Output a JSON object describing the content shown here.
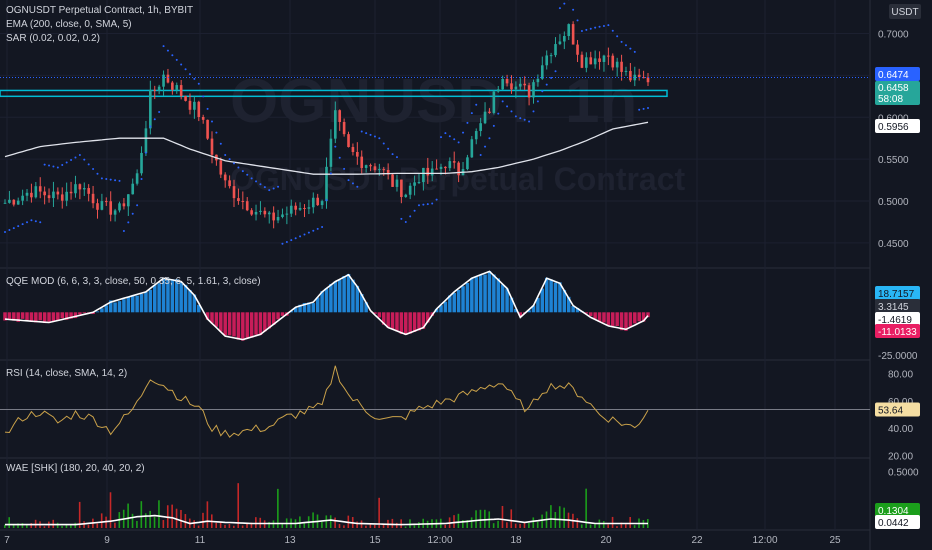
{
  "header": {
    "title": "OGNUSDT Perpetual Contract, 1h, BYBIT",
    "ind1": "EMA (200, close, 0, SMA, 5)",
    "ind2": "SAR (0.02, 0.02, 0.2)",
    "currency": "USDT",
    "watermark_big": "OGNUSDT",
    "watermark_big_suffix": "1h",
    "watermark_small": "OGNUSDT Perpetual Contract"
  },
  "colors": {
    "background": "#131722",
    "up": "#26a69a",
    "down": "#ef5350",
    "sar": "#2962ff",
    "ema": "#e0e3eb",
    "level": "#00bcd4",
    "qqe_up": "#2196f3",
    "qqe_down": "#e91e63",
    "rsi": "#c9a14a",
    "wae_up": "#1b9e1b",
    "wae_down": "#c62828"
  },
  "chart_data": [
    {
      "type": "candlestick",
      "panel": "price",
      "title": "OGNUSDT Perpetual Contract, 1h, BYBIT",
      "y_ticks": [
        "0.7000",
        "0.6500",
        "0.6000",
        "0.5500",
        "0.5000",
        "0.4500"
      ],
      "ylim": [
        0.42,
        0.74
      ],
      "x_ticks": [
        "7",
        "9",
        "11",
        "13",
        "15",
        "12:00",
        "18",
        "20",
        "22",
        "12:00",
        "25"
      ],
      "close_path": [
        [
          0,
          0.498
        ],
        [
          6,
          0.512
        ],
        [
          12,
          0.505
        ],
        [
          17,
          0.52
        ],
        [
          22,
          0.492
        ],
        [
          26,
          0.489
        ],
        [
          30,
          0.53
        ],
        [
          33,
          0.624
        ],
        [
          36,
          0.65
        ],
        [
          40,
          0.628
        ],
        [
          44,
          0.605
        ],
        [
          47,
          0.56
        ],
        [
          50,
          0.52
        ],
        [
          53,
          0.505
        ],
        [
          56,
          0.492
        ],
        [
          60,
          0.478
        ],
        [
          64,
          0.486
        ],
        [
          68,
          0.495
        ],
        [
          72,
          0.504
        ],
        [
          75,
          0.6
        ],
        [
          78,
          0.56
        ],
        [
          81,
          0.548
        ],
        [
          85,
          0.54
        ],
        [
          88,
          0.521
        ],
        [
          91,
          0.51
        ],
        [
          94,
          0.53
        ],
        [
          97,
          0.532
        ],
        [
          100,
          0.546
        ],
        [
          103,
          0.535
        ],
        [
          106,
          0.57
        ],
        [
          110,
          0.61
        ],
        [
          113,
          0.654
        ],
        [
          116,
          0.636
        ],
        [
          119,
          0.63
        ],
        [
          122,
          0.666
        ],
        [
          125,
          0.69
        ],
        [
          128,
          0.706
        ],
        [
          131,
          0.668
        ],
        [
          134,
          0.672
        ],
        [
          137,
          0.675
        ],
        [
          140,
          0.655
        ],
        [
          143,
          0.643
        ],
        [
          146,
          0.646
        ]
      ],
      "ema_path": [
        [
          0,
          0.553
        ],
        [
          8,
          0.565
        ],
        [
          16,
          0.57
        ],
        [
          26,
          0.575
        ],
        [
          36,
          0.575
        ],
        [
          42,
          0.562
        ],
        [
          50,
          0.548
        ],
        [
          60,
          0.54
        ],
        [
          70,
          0.532
        ],
        [
          80,
          0.532
        ],
        [
          90,
          0.533
        ],
        [
          100,
          0.533
        ],
        [
          106,
          0.535
        ],
        [
          112,
          0.54
        ],
        [
          120,
          0.55
        ],
        [
          126,
          0.56
        ],
        [
          132,
          0.572
        ],
        [
          138,
          0.586
        ],
        [
          146,
          0.594
        ]
      ],
      "level_band": [
        0.625,
        0.632
      ],
      "last_price": 0.6474,
      "last_price_label": "0.6474",
      "current_close_label": "0.6458",
      "countdown_label": "58:08",
      "ema_label": "0.5956"
    },
    {
      "type": "histogram+line",
      "panel": "qqe",
      "title": "QQE MOD (6, 6, 3, 3, close, 50, 0.35, 6, 5, 1.61, 3, close)",
      "y_ticks": [
        "-25.0000"
      ],
      "ylim": [
        -28,
        26
      ],
      "line_path": [
        [
          0,
          -4
        ],
        [
          10,
          -6
        ],
        [
          20,
          0
        ],
        [
          24,
          6
        ],
        [
          28,
          9
        ],
        [
          32,
          12
        ],
        [
          36,
          20
        ],
        [
          40,
          18
        ],
        [
          43,
          10
        ],
        [
          46,
          -4
        ],
        [
          50,
          -14
        ],
        [
          54,
          -16
        ],
        [
          58,
          -13
        ],
        [
          62,
          -5
        ],
        [
          66,
          3
        ],
        [
          70,
          6
        ],
        [
          72,
          12
        ],
        [
          75,
          18
        ],
        [
          78,
          22
        ],
        [
          80,
          15
        ],
        [
          83,
          1
        ],
        [
          87,
          -9
        ],
        [
          91,
          -13
        ],
        [
          95,
          -9
        ],
        [
          98,
          2
        ],
        [
          102,
          12
        ],
        [
          106,
          20
        ],
        [
          110,
          24
        ],
        [
          114,
          14
        ],
        [
          117,
          -3
        ],
        [
          120,
          4
        ],
        [
          123,
          20
        ],
        [
          126,
          17
        ],
        [
          129,
          4
        ],
        [
          133,
          -3
        ],
        [
          137,
          -8
        ],
        [
          141,
          -10
        ],
        [
          145,
          -5
        ],
        [
          146,
          -2
        ]
      ],
      "labels": [
        "18.7157",
        "3.3145",
        "-1.4619",
        "-11.0133"
      ]
    },
    {
      "type": "line",
      "panel": "rsi",
      "title": "RSI (14, close, SMA, 14, 2)",
      "y_ticks": [
        "80.00",
        "60.00",
        "40.00",
        "20.00"
      ],
      "ylim": [
        18,
        90
      ],
      "rsi_path": [
        [
          0,
          35
        ],
        [
          4,
          48
        ],
        [
          8,
          52
        ],
        [
          12,
          44
        ],
        [
          16,
          51
        ],
        [
          20,
          47
        ],
        [
          24,
          38
        ],
        [
          28,
          50
        ],
        [
          30,
          58
        ],
        [
          33,
          78
        ],
        [
          36,
          72
        ],
        [
          40,
          62
        ],
        [
          44,
          55
        ],
        [
          47,
          40
        ],
        [
          50,
          36
        ],
        [
          55,
          38
        ],
        [
          60,
          41
        ],
        [
          64,
          48
        ],
        [
          68,
          52
        ],
        [
          72,
          56
        ],
        [
          75,
          84
        ],
        [
          78,
          64
        ],
        [
          82,
          53
        ],
        [
          86,
          46
        ],
        [
          90,
          47
        ],
        [
          94,
          54
        ],
        [
          98,
          58
        ],
        [
          102,
          62
        ],
        [
          106,
          66
        ],
        [
          110,
          72
        ],
        [
          113,
          73
        ],
        [
          116,
          60
        ],
        [
          119,
          53
        ],
        [
          122,
          68
        ],
        [
          125,
          72
        ],
        [
          128,
          70
        ],
        [
          131,
          64
        ],
        [
          135,
          50
        ],
        [
          139,
          45
        ],
        [
          143,
          40
        ],
        [
          146,
          54
        ]
      ],
      "value_label": "53.64",
      "value": 53.64
    },
    {
      "type": "histogram+line",
      "panel": "wae",
      "title": "WAE [SHK] (180, 20, 40, 20, 2)",
      "y_ticks": [
        "0.5000"
      ],
      "ylim": [
        0,
        0.62
      ],
      "explosion_path": [
        [
          0,
          0.03
        ],
        [
          16,
          0.03
        ],
        [
          24,
          0.06
        ],
        [
          30,
          0.1
        ],
        [
          34,
          0.11
        ],
        [
          38,
          0.09
        ],
        [
          42,
          0.04
        ],
        [
          46,
          0.06
        ],
        [
          50,
          0.05
        ],
        [
          56,
          0.04
        ],
        [
          66,
          0.04
        ],
        [
          74,
          0.07
        ],
        [
          80,
          0.04
        ],
        [
          90,
          0.03
        ],
        [
          100,
          0.04
        ],
        [
          108,
          0.07
        ],
        [
          112,
          0.08
        ],
        [
          118,
          0.05
        ],
        [
          124,
          0.08
        ],
        [
          128,
          0.07
        ],
        [
          134,
          0.04
        ],
        [
          146,
          0.04
        ]
      ],
      "labels": [
        "0.1304",
        "0.0442"
      ]
    }
  ]
}
